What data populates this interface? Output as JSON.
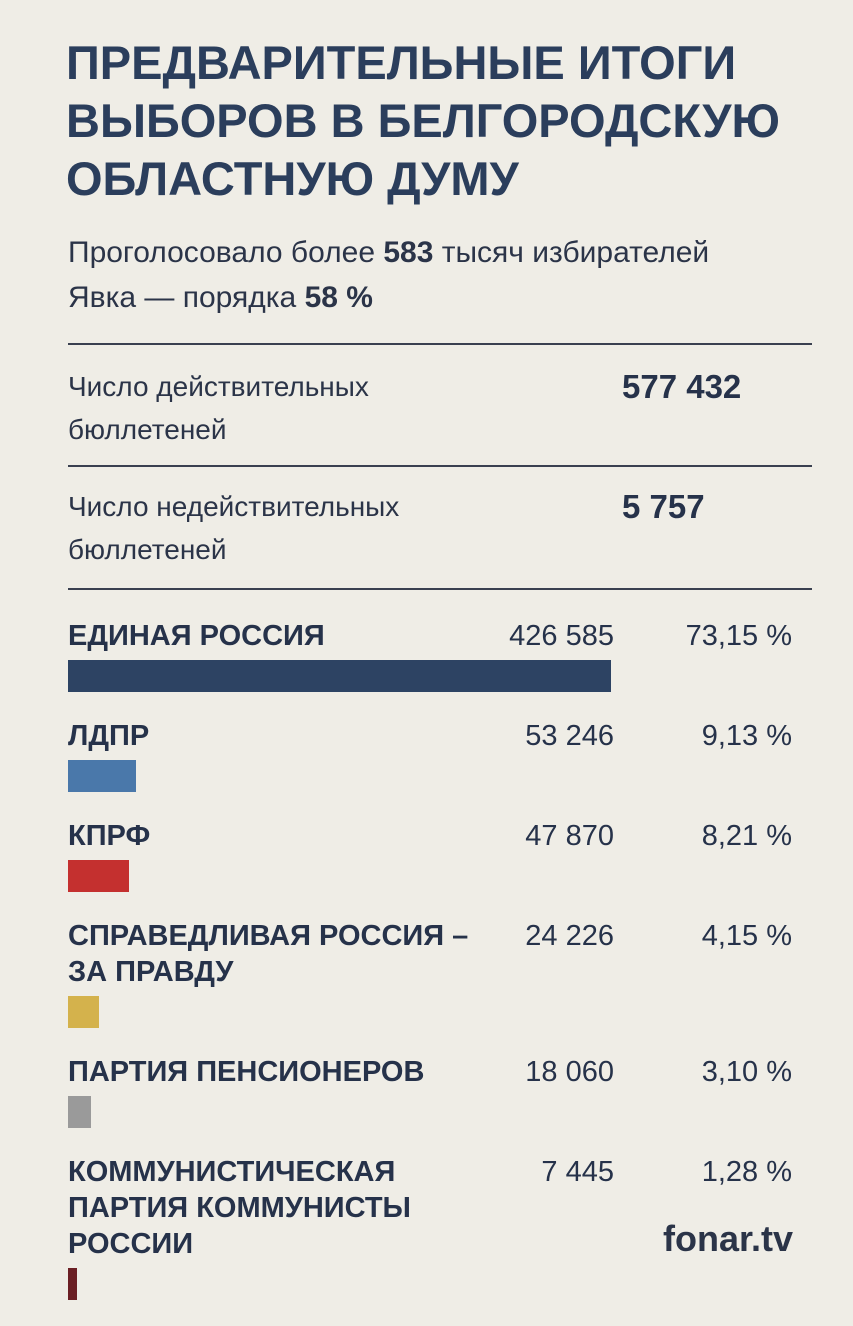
{
  "header": {
    "title_lines": [
      "ПРЕДВАРИТЕЛЬНЫЕ ИТОГИ",
      "ВЫБОРОВ В БЕЛГОРОДСКУЮ",
      "ОБЛАСТНУЮ ДУМУ"
    ],
    "subtitle": [
      [
        "Проголосовало более ",
        "583",
        " тысяч избирателей"
      ],
      [
        "Явка — порядка ",
        "58 %",
        ""
      ]
    ]
  },
  "stats": [
    {
      "label": "Число действительных бюллетеней",
      "value": "577 432"
    },
    {
      "label": "Число недействительных бюллетеней",
      "value": "5 757"
    }
  ],
  "chart_data": {
    "type": "bar",
    "categories": [
      "ЕДИНАЯ РОССИЯ",
      "ЛДПР",
      "КПРФ",
      "СПРАВЕДЛИВАЯ РОССИЯ – ЗА ПРАВДУ",
      "ПАРТИЯ ПЕНСИОНЕРОВ",
      "КОММУНИСТИЧЕСКАЯ ПАРТИЯ КОММУНИСТЫ РОССИИ"
    ],
    "values": [
      426585,
      53246,
      47870,
      24226,
      18060,
      7445
    ],
    "value_labels": [
      "426 585",
      "53 246",
      "47 870",
      "24 226",
      "18 060",
      "7 445"
    ],
    "shares": [
      73.15,
      9.13,
      8.21,
      4.15,
      3.1,
      1.28
    ],
    "share_labels": [
      "73,15 %",
      "9,13 %",
      "8,21 %",
      "4,15 %",
      "3,10 %",
      "1,28 %"
    ],
    "colors": [
      "#2d4363",
      "#4a78aa",
      "#c4302f",
      "#d4b24c",
      "#9a9a9a",
      "#6b1f24"
    ]
  },
  "footer": {
    "source": "fonar.tv"
  }
}
